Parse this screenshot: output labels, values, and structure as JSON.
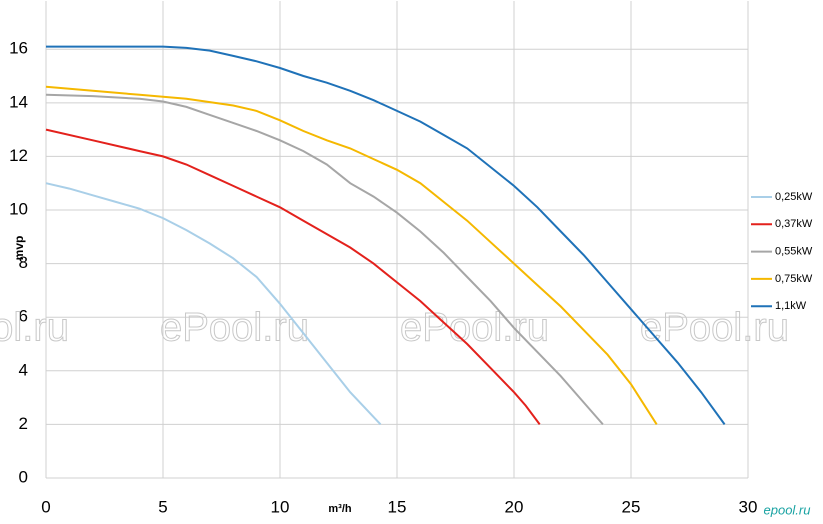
{
  "chart_data": {
    "type": "line",
    "y_label": "mvp",
    "x_label": "m³/h",
    "watermark": "ePool.ru",
    "logo": "epool.ru",
    "xlim": [
      0,
      30
    ],
    "xticks": [
      0,
      5,
      10,
      15,
      20,
      25,
      30
    ],
    "ylim": [
      0,
      17.8
    ],
    "yticks": [
      0,
      2,
      4,
      6,
      8,
      10,
      12,
      14,
      16
    ],
    "grid": true,
    "legend": "right",
    "series": [
      {
        "name": "0,25kW",
        "color": "#a9cfe8",
        "x": [
          0,
          1,
          2,
          3,
          4,
          5,
          6,
          7,
          8,
          9,
          10,
          11,
          12,
          13,
          14.3
        ],
        "values": [
          11,
          10.8,
          10.55,
          10.3,
          10.05,
          9.7,
          9.25,
          8.75,
          8.2,
          7.5,
          6.5,
          5.4,
          4.3,
          3.2,
          2
        ]
      },
      {
        "name": "0,37kW",
        "color": "#e3211c",
        "x": [
          0,
          2,
          4,
          5,
          6,
          7,
          8,
          9,
          10,
          11,
          12,
          13,
          14,
          15,
          16,
          17,
          18,
          19,
          20,
          20.5,
          21.1
        ],
        "values": [
          13,
          12.6,
          12.2,
          12.0,
          11.7,
          11.3,
          10.9,
          10.5,
          10.1,
          9.6,
          9.1,
          8.6,
          8.0,
          7.3,
          6.6,
          5.8,
          5.0,
          4.1,
          3.2,
          2.7,
          2
        ]
      },
      {
        "name": "0,55kW",
        "color": "#a6a6a6",
        "x": [
          0,
          2,
          4,
          5,
          6,
          7,
          8,
          9,
          10,
          11,
          12,
          13,
          14,
          15,
          16,
          17,
          18,
          19,
          20,
          21,
          22,
          23,
          23.8
        ],
        "values": [
          14.3,
          14.25,
          14.15,
          14.05,
          13.85,
          13.55,
          13.25,
          12.95,
          12.6,
          12.2,
          11.7,
          11.0,
          10.5,
          9.9,
          9.2,
          8.4,
          7.5,
          6.6,
          5.6,
          4.7,
          3.8,
          2.8,
          2
        ]
      },
      {
        "name": "0,75kW",
        "color": "#f5b800",
        "x": [
          0,
          2,
          4,
          6,
          8,
          9,
          10,
          11,
          12,
          13,
          14,
          15,
          16,
          17,
          18,
          19,
          20,
          21,
          22,
          23,
          24,
          25,
          26.1
        ],
        "values": [
          14.6,
          14.45,
          14.3,
          14.15,
          13.9,
          13.7,
          13.35,
          12.95,
          12.6,
          12.3,
          11.9,
          11.5,
          11.0,
          10.3,
          9.6,
          8.8,
          8.0,
          7.2,
          6.4,
          5.5,
          4.6,
          3.5,
          2
        ]
      },
      {
        "name": "1,1kW",
        "color": "#1f72b8",
        "x": [
          0,
          3,
          5,
          6,
          7,
          8,
          9,
          10,
          11,
          12,
          13,
          14,
          15,
          16,
          17,
          18,
          19,
          20,
          21,
          22,
          23,
          24,
          25,
          26,
          27,
          28,
          29
        ],
        "values": [
          16.1,
          16.1,
          16.1,
          16.05,
          15.95,
          15.75,
          15.55,
          15.3,
          15.0,
          14.75,
          14.45,
          14.1,
          13.7,
          13.3,
          12.8,
          12.3,
          11.6,
          10.9,
          10.1,
          9.2,
          8.3,
          7.3,
          6.3,
          5.3,
          4.3,
          3.2,
          2
        ]
      }
    ]
  }
}
